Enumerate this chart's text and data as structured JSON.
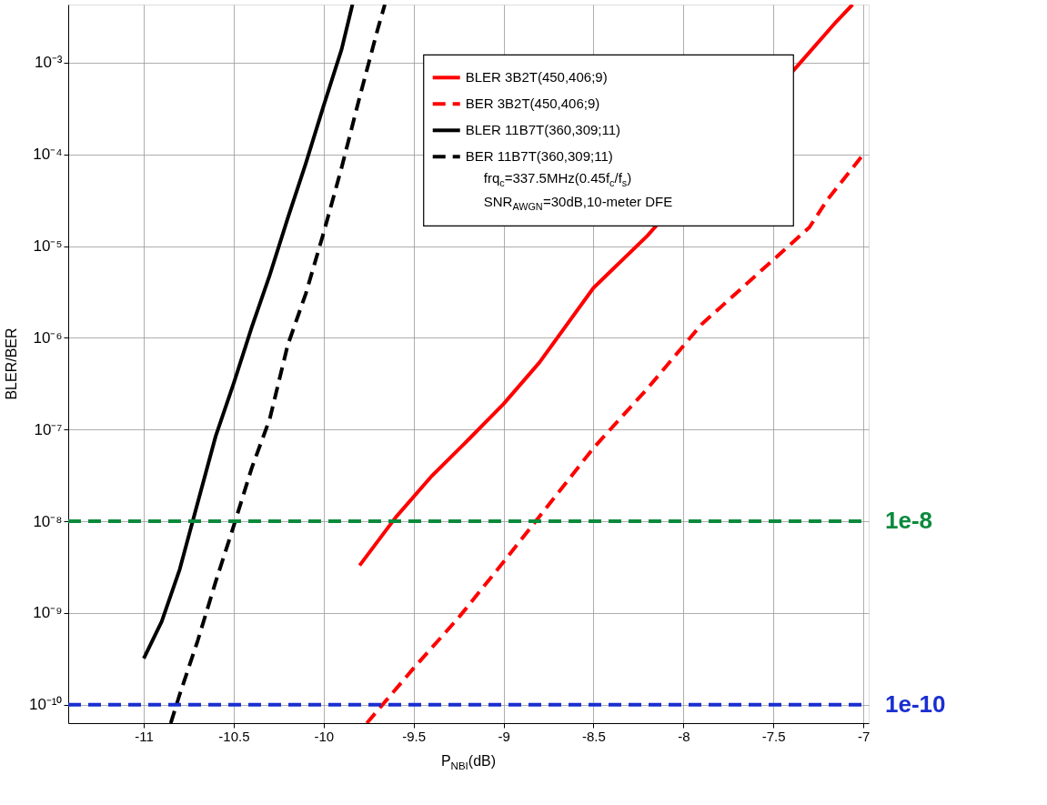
{
  "chart_data": {
    "type": "line",
    "xlabel": "P$_{NBI}$(dB)",
    "ylabel": "BLER/BER",
    "log": "y",
    "grid": true,
    "legend": "top right",
    "xlim": [
      -11.42,
      -6.97
    ],
    "xticks": [
      -11,
      -10.5,
      -10,
      -9.5,
      -9,
      -8.5,
      -8,
      -7.5,
      -7
    ],
    "ylim": [
      6.3e-11,
      0.0043
    ],
    "yticks": [
      {
        "value": 1e-10,
        "label": "10⁻¹⁰"
      },
      {
        "value": 1e-09,
        "label": "10⁻⁹"
      },
      {
        "value": 1e-08,
        "label": "10⁻⁸"
      },
      {
        "value": 1e-07,
        "label": "10⁻⁷"
      },
      {
        "value": 1e-06,
        "label": "10⁻⁶"
      },
      {
        "value": 1e-05,
        "label": "10⁻⁵"
      },
      {
        "value": 0.0001,
        "label": "10⁻⁴"
      },
      {
        "value": 0.001,
        "label": "10⁻³"
      }
    ],
    "series": [
      {
        "name": "BLER 3B2T(450,406;9)",
        "color": "#ff0000",
        "line_style": "solid",
        "x": [
          -9.8,
          -9.6,
          -9.4,
          -9.2,
          -9.0,
          -8.8,
          -8.5,
          -8.2,
          -7.35,
          -7.15,
          -7.06
        ],
        "values": [
          3.3e-09,
          1.1e-08,
          3.1e-08,
          7.6e-08,
          1.9e-07,
          5.4e-07,
          3.5e-06,
          1.3e-05,
          0.001,
          0.0028,
          0.0043
        ]
      },
      {
        "name": "BER 3B2T(450,406;9)",
        "color": "#ff0000",
        "line_style": "dashed",
        "x": [
          -9.76,
          -9.5,
          -9.25,
          -9.0,
          -8.5,
          -8.2,
          -7.9,
          -7.8,
          -7.5,
          -7.3,
          -7.2,
          -7.0
        ],
        "values": [
          6.3e-11,
          2.5e-10,
          8.9e-10,
          3.6e-09,
          6.3e-08,
          2.8e-07,
          1.4e-06,
          2.1e-06,
          7.1e-06,
          1.6e-05,
          3.2e-05,
          0.0001
        ]
      },
      {
        "name": "BLER 11B7T(360,309;11)",
        "color": "#000000",
        "line_style": "solid",
        "x": [
          -11.0,
          -10.9,
          -10.8,
          -10.7,
          -10.6,
          -10.5,
          -10.4,
          -10.3,
          -10.2,
          -10.1,
          -10.0,
          -9.9,
          -9.84
        ],
        "values": [
          3.2e-10,
          8.1e-10,
          3e-09,
          1.6e-08,
          8.5e-08,
          3.2e-07,
          1.3e-06,
          4.8e-06,
          2e-05,
          7.9e-05,
          0.00034,
          0.0014,
          0.0043
        ]
      },
      {
        "name": "BER 11B7T(360,309;11)",
        "color": "#000000",
        "line_style": "dashed",
        "x": [
          -10.85,
          -10.8,
          -10.7,
          -10.6,
          -10.5,
          -10.4,
          -10.3,
          -10.2,
          -10.1,
          -10.0,
          -9.9,
          -9.8,
          -9.7,
          -9.66
        ],
        "values": [
          6.3e-11,
          1.3e-10,
          5e-10,
          2.2e-09,
          8.9e-09,
          3.8e-08,
          1.3e-07,
          8.3e-07,
          3e-06,
          1.4e-05,
          7.2e-05,
          0.00042,
          0.0023,
          0.0043
        ]
      }
    ],
    "ref_lines": [
      {
        "axis": "y",
        "value": 1e-08,
        "label": "1e-8",
        "color": "#0b8a3c",
        "line_style": "dashed"
      },
      {
        "axis": "y",
        "value": 1e-10,
        "label": "1e-10",
        "color": "#1a2fd0",
        "line_style": "dashed"
      }
    ],
    "annotations": [
      "frq$_{c}$=337.5MHz(0.45f$_{c}$/f$_{s}$)",
      "SNR$_{AWGN}$=30dB,10-meter DFE"
    ]
  }
}
